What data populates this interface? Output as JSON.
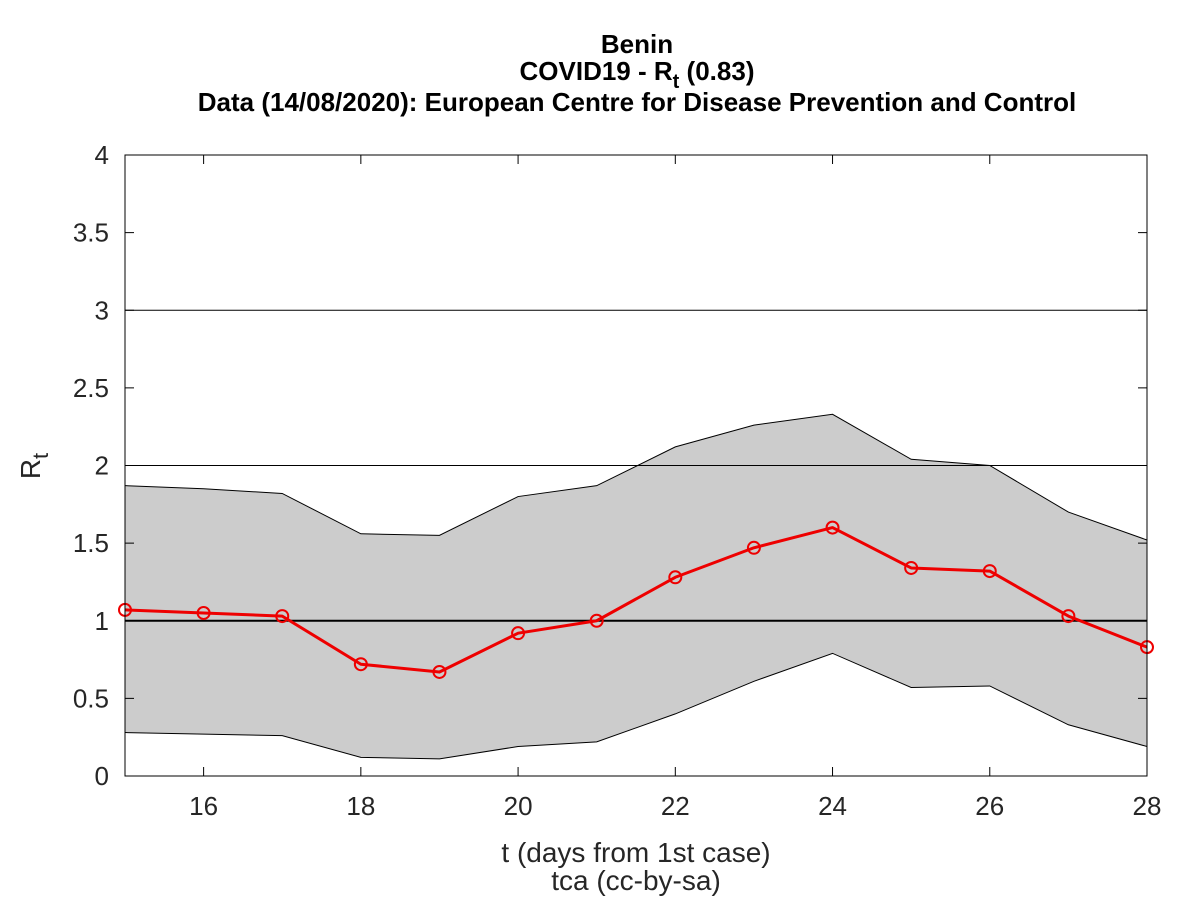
{
  "chart_data": {
    "type": "line",
    "title": {
      "line1": "Benin",
      "line2_prefix": "COVID19 - R",
      "line2_sub": "t",
      "line2_suffix": " (0.83)",
      "line3": "Data (14/08/2020): European Centre for Disease Prevention and Control"
    },
    "xlabel": "t (days from 1st case)",
    "ylabel_main": "R",
    "ylabel_sub": "t",
    "credit": "tca (cc-by-sa)",
    "xlim": [
      15,
      28
    ],
    "ylim": [
      0,
      4
    ],
    "xticks": [
      16,
      18,
      20,
      22,
      24,
      26,
      28
    ],
    "yticks": [
      0,
      0.5,
      1,
      1.5,
      2,
      2.5,
      3,
      3.5,
      4
    ],
    "ytick_labels": [
      "0",
      "0.5",
      "1",
      "1.5",
      "2",
      "2.5",
      "3",
      "3.5",
      "4"
    ],
    "reference_lines": [
      1,
      2,
      3
    ],
    "grid": false,
    "x": [
      15,
      16,
      17,
      18,
      19,
      20,
      21,
      22,
      23,
      24,
      25,
      26,
      27,
      28
    ],
    "series": [
      {
        "values": [
          1.07,
          1.05,
          1.03,
          0.72,
          0.67,
          0.92,
          1.0,
          1.28,
          1.47,
          1.6,
          1.34,
          1.32,
          1.03,
          0.83
        ]
      }
    ],
    "band": {
      "upper": [
        1.87,
        1.85,
        1.82,
        1.56,
        1.55,
        1.8,
        1.87,
        2.12,
        2.26,
        2.33,
        2.04,
        2.0,
        1.7,
        1.52
      ],
      "lower": [
        0.28,
        0.27,
        0.26,
        0.12,
        0.11,
        0.19,
        0.22,
        0.4,
        0.61,
        0.79,
        0.57,
        0.58,
        0.33,
        0.19
      ]
    },
    "colors": {
      "line": "#ee0000",
      "band_fill": "#cccccc",
      "band_edge": "#000000",
      "reference": "#000000"
    }
  }
}
